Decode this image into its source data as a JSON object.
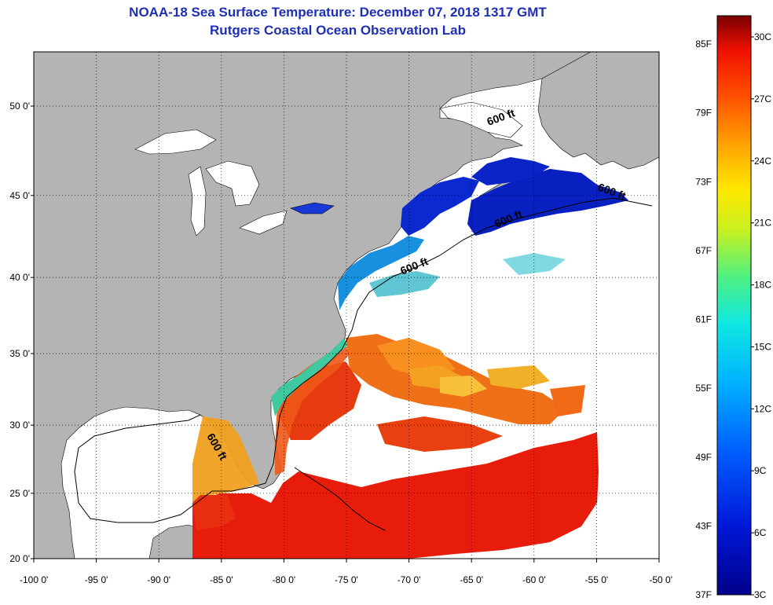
{
  "title": {
    "line1": "NOAA-18 Sea Surface Temperature:  December 07, 2018 1317 GMT",
    "line2": "Rutgers Coastal Ocean Observation Lab"
  },
  "map": {
    "lat_ticks": [
      {
        "value": 50,
        "label": "50 0'"
      },
      {
        "value": 45,
        "label": "45 0'"
      },
      {
        "value": 40,
        "label": "40 0'"
      },
      {
        "value": 35,
        "label": "35 0'"
      },
      {
        "value": 30,
        "label": "30 0'"
      },
      {
        "value": 25,
        "label": "25 0'"
      },
      {
        "value": 20,
        "label": "20 0'"
      }
    ],
    "lon_ticks": [
      {
        "value": -100,
        "label": "-100 0'"
      },
      {
        "value": -95,
        "label": "-95 0'"
      },
      {
        "value": -90,
        "label": "-90 0'"
      },
      {
        "value": -85,
        "label": "-85 0'"
      },
      {
        "value": -80,
        "label": "-80 0'"
      },
      {
        "value": -75,
        "label": "-75 0'"
      },
      {
        "value": -70,
        "label": "-70 0'"
      },
      {
        "value": -65,
        "label": "-65 0'"
      },
      {
        "value": -60,
        "label": "-60 0'"
      },
      {
        "value": -55,
        "label": "-55 0'"
      },
      {
        "value": -50,
        "label": "-50 0'"
      }
    ],
    "depth_labels": [
      "600 ft",
      "600 ft",
      "600 ft",
      "600 ft",
      "600 ft"
    ],
    "colors": {
      "land": "#b4b4b4",
      "ocean": "#ffffff",
      "cold": "#0a1ec8",
      "warm": "#e8200a"
    }
  },
  "colorbar": {
    "f_labels": [
      "85F",
      "79F",
      "73F",
      "67F",
      "61F",
      "55F",
      "49F",
      "43F",
      "37F"
    ],
    "c_labels": [
      "30C",
      "27C",
      "24C",
      "21C",
      "18C",
      "15C",
      "12C",
      "9C",
      "6C",
      "3C"
    ]
  }
}
